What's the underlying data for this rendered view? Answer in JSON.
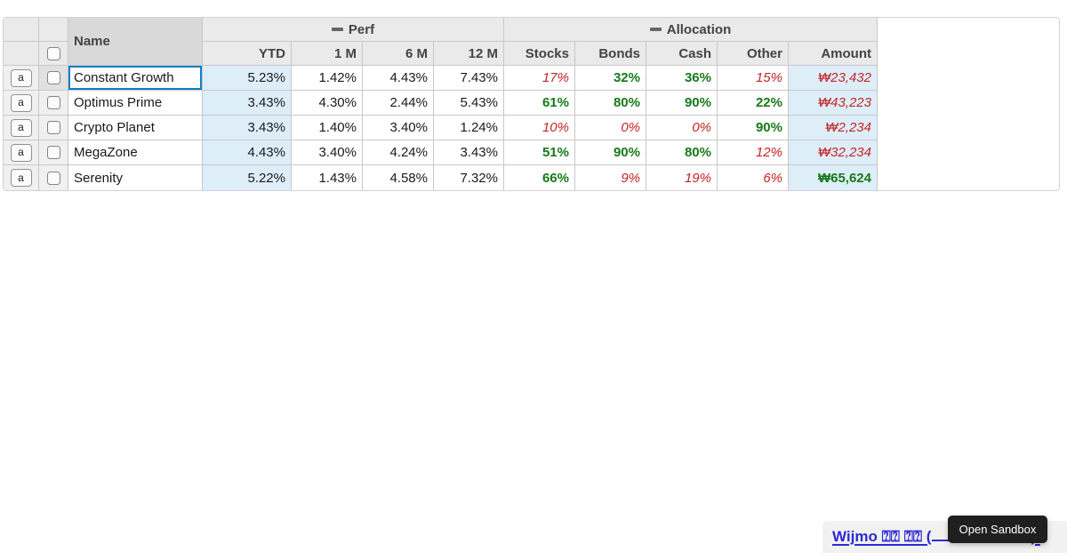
{
  "colors": {
    "selection_accent": "#0c80c4",
    "low_value": "#c42525",
    "high_value": "#17791a",
    "highlight_column_bg": "#deeef9",
    "header_bg": "#eaeaea",
    "active_header_bg": "#d9d9d9",
    "link": "#2b2bd5",
    "tooltip_bg": "#1f1f1f"
  },
  "grid": {
    "headers": {
      "name": "Name",
      "perf_group": "Perf",
      "allocation_group": "Allocation",
      "ytd": "YTD",
      "m1": "1 M",
      "m6": "6 M",
      "m12": "12 M",
      "stocks": "Stocks",
      "bonds": "Bonds",
      "cash": "Cash",
      "other": "Other",
      "amount": "Amount"
    },
    "row_button_label": "a",
    "selection": {
      "row": 0,
      "column": "name"
    },
    "rows": [
      {
        "name": "Constant Growth",
        "ytd": "5.23%",
        "m1": "1.42%",
        "m6": "4.43%",
        "m12": "7.43%",
        "stocks": "17%",
        "stocks_style": "low",
        "bonds": "32%",
        "bonds_style": "high",
        "cash": "36%",
        "cash_style": "high",
        "other": "15%",
        "other_style": "low",
        "amount": "₩23,432",
        "amount_style": "low"
      },
      {
        "name": "Optimus Prime",
        "ytd": "3.43%",
        "m1": "4.30%",
        "m6": "2.44%",
        "m12": "5.43%",
        "stocks": "61%",
        "stocks_style": "high",
        "bonds": "80%",
        "bonds_style": "high",
        "cash": "90%",
        "cash_style": "high",
        "other": "22%",
        "other_style": "high",
        "amount": "₩43,223",
        "amount_style": "low"
      },
      {
        "name": "Crypto Planet",
        "ytd": "3.43%",
        "m1": "1.40%",
        "m6": "3.40%",
        "m12": "1.24%",
        "stocks": "10%",
        "stocks_style": "low",
        "bonds": "0%",
        "bonds_style": "low",
        "cash": "0%",
        "cash_style": "low",
        "other": "90%",
        "other_style": "high",
        "amount": "₩2,234",
        "amount_style": "low"
      },
      {
        "name": "MegaZone",
        "ytd": "4.43%",
        "m1": "3.40%",
        "m6": "4.24%",
        "m12": "3.43%",
        "stocks": "51%",
        "stocks_style": "high",
        "bonds": "90%",
        "bonds_style": "high",
        "cash": "80%",
        "cash_style": "high",
        "other": "12%",
        "other_style": "low",
        "amount": "₩32,234",
        "amount_style": "low"
      },
      {
        "name": "Serenity",
        "ytd": "5.22%",
        "m1": "1.43%",
        "m6": "4.58%",
        "m12": "7.32%",
        "stocks": "66%",
        "stocks_style": "high",
        "bonds": "9%",
        "bonds_style": "low",
        "cash": "19%",
        "cash_style": "low",
        "other": "6%",
        "other_style": "low",
        "amount": "₩65,624",
        "amount_style": "high"
      }
    ]
  },
  "footer": {
    "link_prefix": "Wijmo ⍰⍰ ⍰⍰ (",
    "link_suffix": ").",
    "tooltip_label": "Open Sandbox"
  }
}
